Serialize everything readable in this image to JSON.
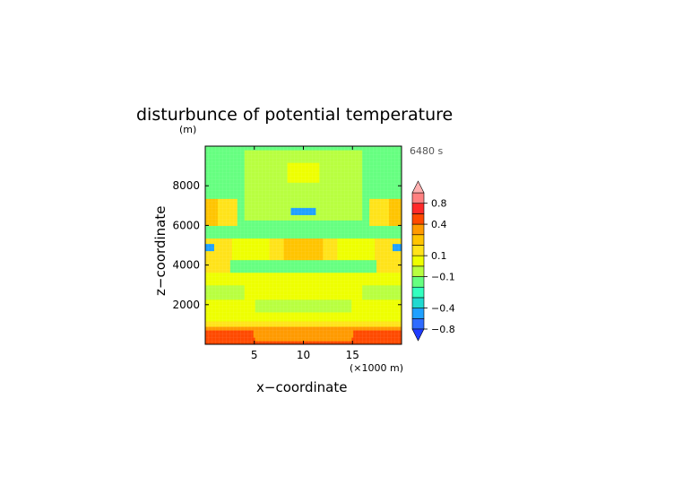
{
  "chart_data": {
    "type": "heatmap",
    "title": "disturbunce of potential temperature",
    "ylabel_unit": "(m)",
    "xlabel": "x−coordinate",
    "xlabel_unit": "(×1000 m)",
    "ylabel": "z−coordinate",
    "time_label": "6480 s",
    "xlim": [
      0,
      20
    ],
    "ylim": [
      0,
      10000
    ],
    "x_ticks": [
      5,
      10,
      15
    ],
    "x_tick_labels": [
      "5",
      "10",
      "15"
    ],
    "y_ticks": [
      2000,
      4000,
      6000,
      8000
    ],
    "y_tick_labels": [
      "2000",
      "4000",
      "6000",
      "8000"
    ],
    "colorbar": {
      "levels": [
        -1.0,
        -0.8,
        -0.6,
        -0.4,
        -0.3,
        -0.2,
        -0.1,
        0,
        0.1,
        0.2,
        0.3,
        0.4,
        0.6,
        0.8,
        1.0
      ],
      "colors": [
        "#1f3cff",
        "#2f6bff",
        "#1fa0ff",
        "#20d9d0",
        "#33ffbf",
        "#66ff80",
        "#b8ff40",
        "#eeff00",
        "#ffe31a",
        "#ffc400",
        "#ff9a00",
        "#ff4a00",
        "#ff2a2a",
        "#ff8080",
        "#ffb0b0"
      ],
      "extend": "both",
      "tick_values": [
        0.8,
        0.4,
        0.1,
        -0.1,
        -0.4,
        -0.8
      ],
      "tick_labels": [
        "0.8",
        "0.4",
        "0.1",
        "−0.1",
        "−0.4",
        "−0.8"
      ]
    },
    "field_description": {
      "bands": [
        {
          "z": [
            0,
            400
          ],
          "value": 0.5
        },
        {
          "z": [
            400,
            900
          ],
          "value": 0.3
        },
        {
          "z": [
            900,
            1500
          ],
          "value": 0.15
        },
        {
          "z": [
            1500,
            2300
          ],
          "value": 0.05
        },
        {
          "z": [
            2300,
            3000
          ],
          "value": -0.05
        },
        {
          "z": [
            3000,
            3600
          ],
          "value": 0.05
        },
        {
          "z": [
            3600,
            4300
          ],
          "value": -0.2
        },
        {
          "z": [
            4300,
            5400
          ],
          "value": 0.1
        },
        {
          "z": [
            5400,
            6300
          ],
          "value": -0.2
        },
        {
          "z": [
            6300,
            7400
          ],
          "value": -0.2
        },
        {
          "z": [
            7400,
            10000
          ],
          "value": -0.2
        }
      ]
    }
  }
}
